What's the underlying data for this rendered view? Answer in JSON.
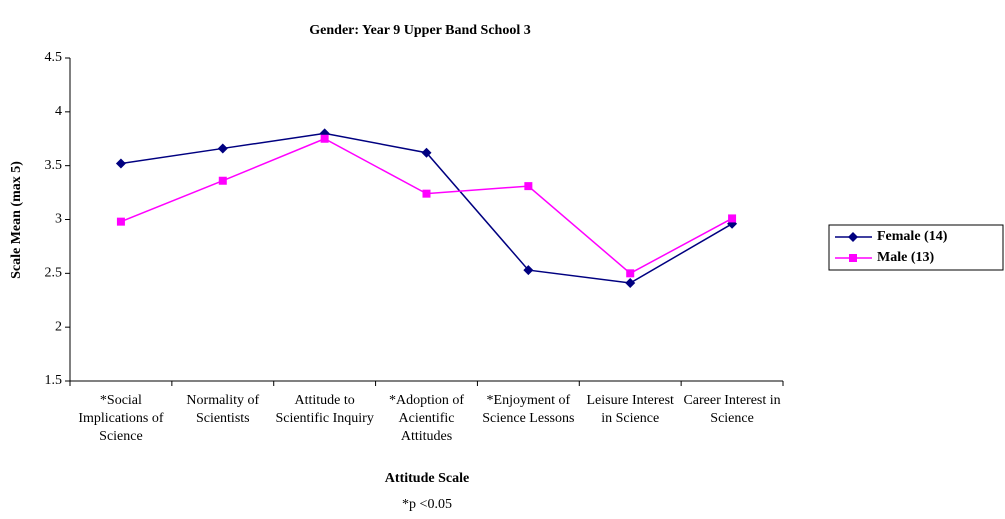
{
  "chart_data": {
    "type": "line",
    "title": "Gender: Year 9 Upper Band School 3",
    "x_label": "Attitude Scale",
    "y_label": "Scale Mean (max 5)",
    "annotation": "*p <0.05",
    "categories": [
      "*Social Implications of Science",
      "Normality of Scientists",
      "Attitude to Scientific Inquiry",
      "*Adoption of Acientific Attitudes",
      "*Enjoyment of Science Lessons",
      "Leisure Interest in Science",
      "Career Interest in Science"
    ],
    "series": [
      {
        "name": "Female (14)",
        "color": "#000080",
        "marker": "diamond",
        "values": [
          3.52,
          3.66,
          3.8,
          3.62,
          2.53,
          2.41,
          2.96
        ]
      },
      {
        "name": "Male (13)",
        "color": "#ff00ff",
        "marker": "square",
        "values": [
          2.98,
          3.36,
          3.75,
          3.24,
          3.31,
          2.5,
          3.01
        ]
      }
    ],
    "ylim": [
      1.5,
      4.5
    ],
    "yticks": [
      1.5,
      2,
      2.5,
      3,
      3.5,
      4,
      4.5
    ],
    "grid": false,
    "legend": "right"
  }
}
